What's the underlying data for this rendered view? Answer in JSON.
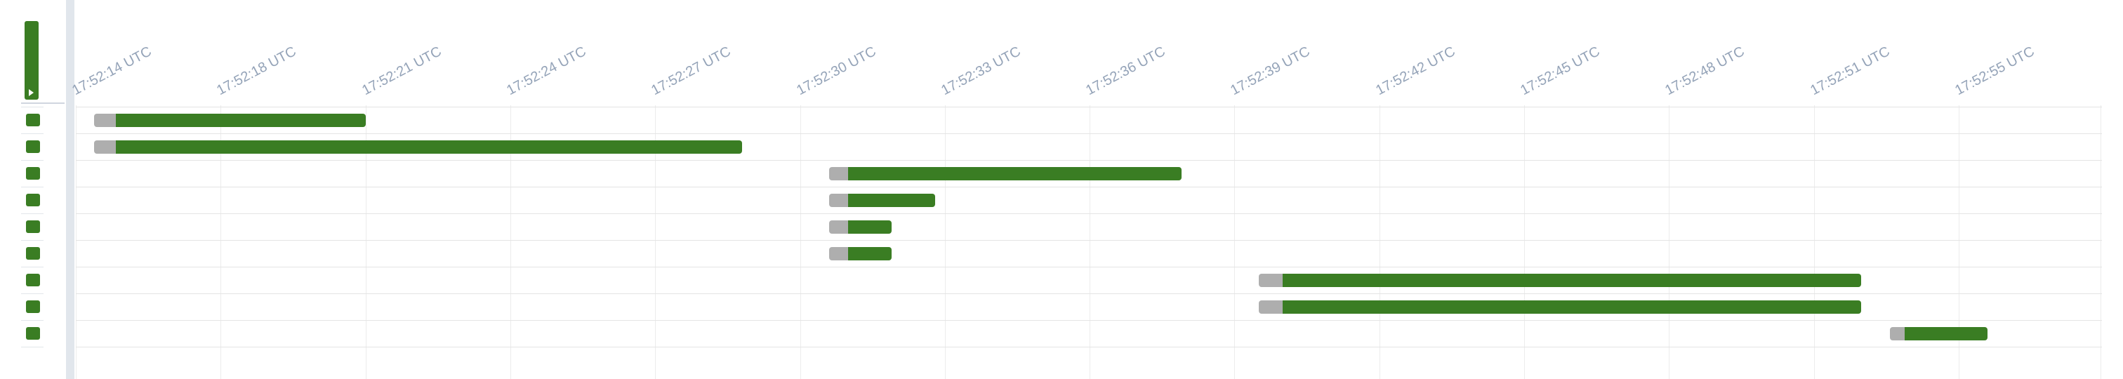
{
  "colors": {
    "success": "#3a7d23",
    "queued": "#aeaeae",
    "tick_label": "#94a3b8",
    "splitter": "#e1e6ec"
  },
  "icons": {
    "dag_summary": "play-icon"
  },
  "timeline": {
    "tick_labels": [
      "17:52:14 UTC",
      "17:52:18 UTC",
      "17:52:21 UTC",
      "17:52:24 UTC",
      "17:52:27 UTC",
      "17:52:30 UTC",
      "17:52:33 UTC",
      "17:52:36 UTC",
      "17:52:39 UTC",
      "17:52:42 UTC",
      "17:52:45 UTC",
      "17:52:48 UTC",
      "17:52:51 UTC",
      "17:52:55 UTC"
    ]
  },
  "tasks": [
    {
      "state": "success",
      "queued_start": "17:52:14.5",
      "run_start": "17:52:15.1",
      "end": "17:52:21.0"
    },
    {
      "state": "success",
      "queued_start": "17:52:14.5",
      "run_start": "17:52:15.1",
      "end": "17:52:28.8"
    },
    {
      "state": "success",
      "queued_start": "17:52:30.6",
      "run_start": "17:52:31.0",
      "end": "17:52:37.9"
    },
    {
      "state": "success",
      "queued_start": "17:52:30.6",
      "run_start": "17:52:31.0",
      "end": "17:52:32.8"
    },
    {
      "state": "success",
      "queued_start": "17:52:30.6",
      "run_start": "17:52:31.0",
      "end": "17:52:31.9"
    },
    {
      "state": "success",
      "queued_start": "17:52:30.6",
      "run_start": "17:52:31.0",
      "end": "17:52:31.9"
    },
    {
      "state": "success",
      "queued_start": "17:52:39.5",
      "run_start": "17:52:40.0",
      "end": "17:52:52.3"
    },
    {
      "state": "success",
      "queued_start": "17:52:39.5",
      "run_start": "17:52:40.0",
      "end": "17:52:52.3"
    },
    {
      "state": "success",
      "queued_start": "17:52:53.1",
      "run_start": "17:52:53.5",
      "end": "17:52:55.8"
    }
  ]
}
